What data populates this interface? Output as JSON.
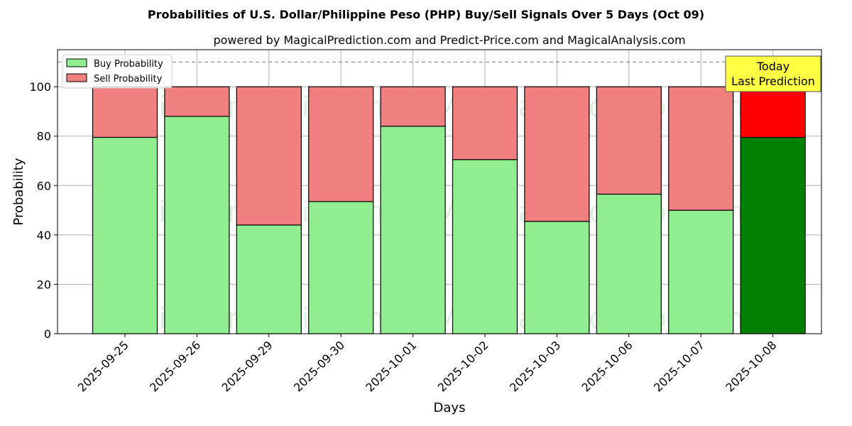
{
  "chart_data": {
    "type": "bar",
    "stacked": true,
    "title": "Probabilities of U.S. Dollar/Philippine Peso (PHP) Buy/Sell Signals Over 5 Days (Oct 09)",
    "subtitle": "powered by MagicalPrediction.com and Predict-Price.com and MagicalAnalysis.com",
    "xlabel": "Days",
    "ylabel": "Probability",
    "ylim": [
      0,
      115
    ],
    "yticks": [
      0,
      20,
      40,
      60,
      80,
      100
    ],
    "reference_line": 110,
    "grid": true,
    "legend_position": "top-left",
    "categories": [
      "2025-09-25",
      "2025-09-26",
      "2025-09-29",
      "2025-09-30",
      "2025-10-01",
      "2025-10-02",
      "2025-10-03",
      "2025-10-06",
      "2025-10-07",
      "2025-10-08"
    ],
    "series": [
      {
        "name": "Buy Probability",
        "color": "#90ee90",
        "highlight_color": "#008000",
        "values": [
          79.5,
          88,
          44,
          53.5,
          84,
          70.5,
          45.5,
          56.5,
          50,
          79.5
        ]
      },
      {
        "name": "Sell Probability",
        "color": "#f08080",
        "highlight_color": "#ff0000",
        "values": [
          20.5,
          12,
          56,
          46.5,
          16,
          29.5,
          54.5,
          43.5,
          50,
          20.5
        ]
      }
    ],
    "highlight_index": 9,
    "annotation": {
      "line1": "Today",
      "line2": "Last Prediction",
      "background": "#ffff44"
    },
    "watermarks": [
      "MagicalAnalysis.com",
      "MagicalPrediction.com"
    ]
  }
}
